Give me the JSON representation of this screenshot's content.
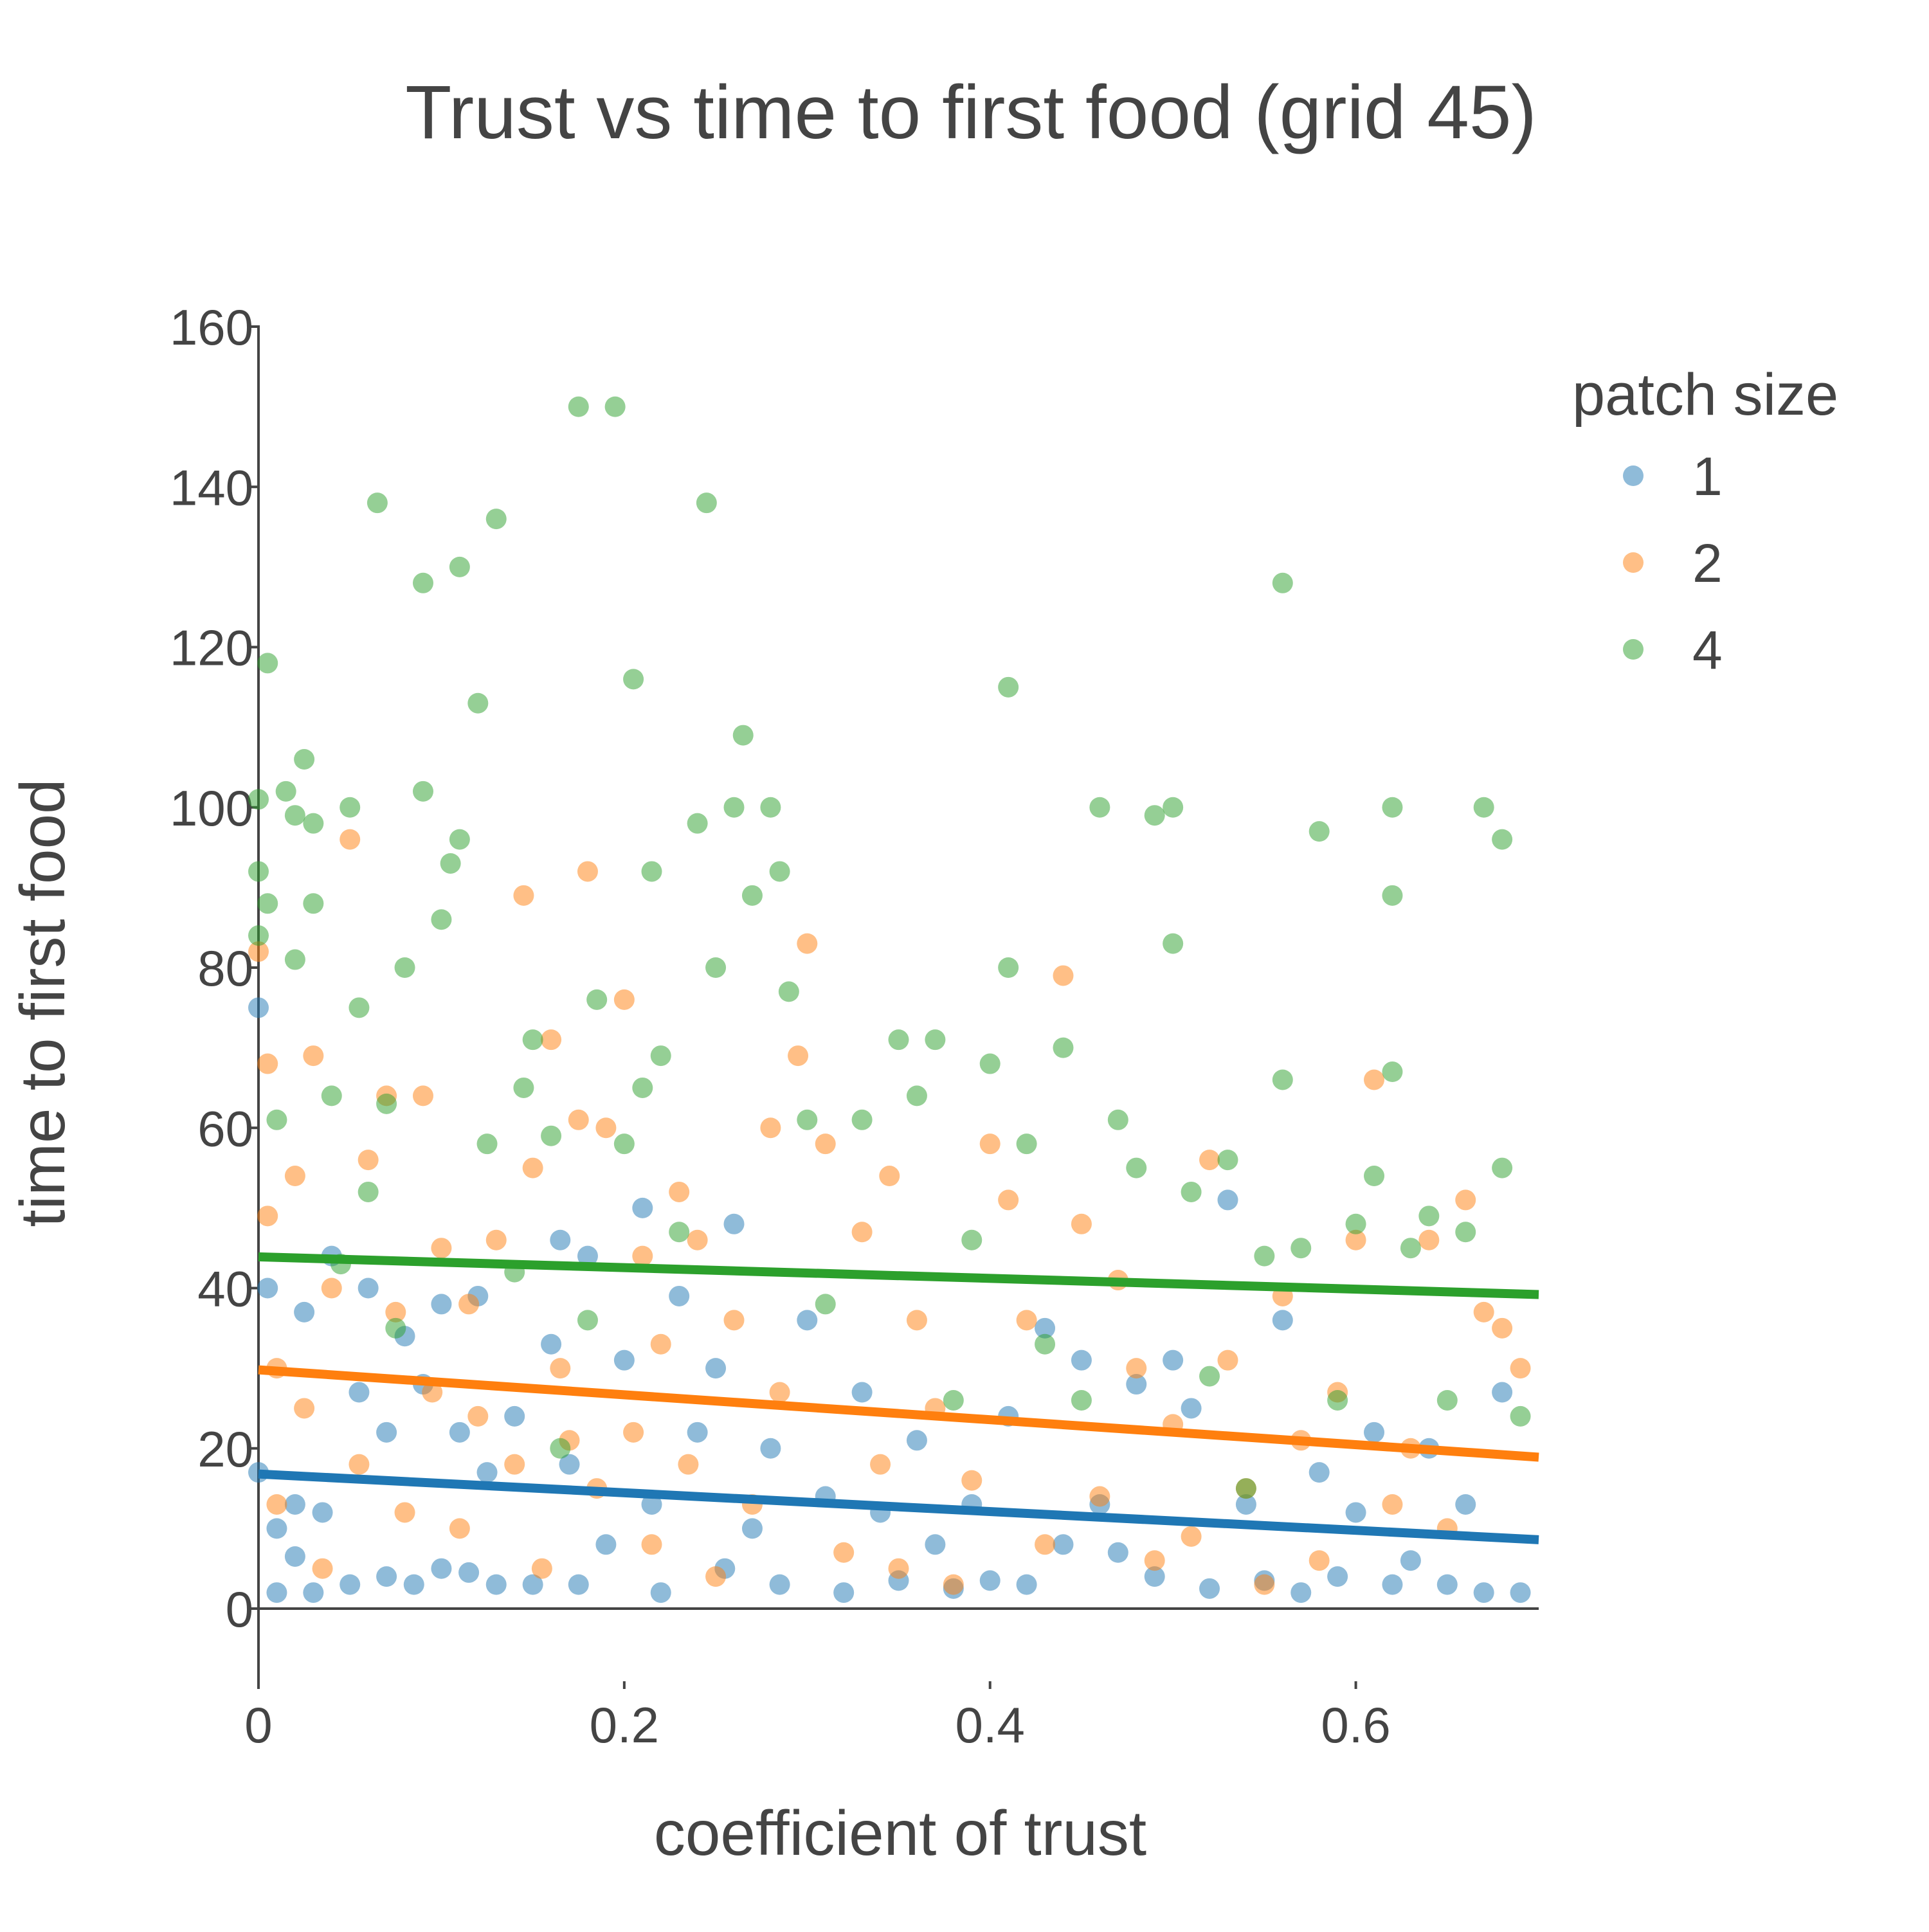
{
  "chart_data": {
    "type": "scatter",
    "title": "Trust vs time to first food (grid 45)",
    "xlabel": "coefficient of trust",
    "ylabel": "time to first food",
    "xlim": [
      0,
      0.7
    ],
    "ylim": [
      -8,
      160
    ],
    "xticks": [
      0,
      0.2,
      0.4,
      0.6
    ],
    "xtick_labels": [
      "0",
      "0.2",
      "0.4",
      "0.6"
    ],
    "yticks": [
      0,
      20,
      40,
      60,
      80,
      100,
      120,
      140,
      160
    ],
    "ytick_labels": [
      "0",
      "20",
      "40",
      "60",
      "80",
      "100",
      "120",
      "140",
      "160"
    ],
    "grid": false,
    "legend": {
      "title": "patch size",
      "placement": "top-right, outside plot"
    },
    "series": [
      {
        "name": "1",
        "color": "#1f77b4",
        "trend": {
          "x": [
            0,
            0.7
          ],
          "y": [
            16.8,
            8.6
          ]
        },
        "points": [
          [
            0.0,
            75
          ],
          [
            0.0,
            17
          ],
          [
            0.005,
            40
          ],
          [
            0.01,
            2
          ],
          [
            0.01,
            10
          ],
          [
            0.02,
            13
          ],
          [
            0.02,
            6.5
          ],
          [
            0.025,
            37
          ],
          [
            0.03,
            2
          ],
          [
            0.035,
            12
          ],
          [
            0.04,
            44
          ],
          [
            0.05,
            3
          ],
          [
            0.055,
            27
          ],
          [
            0.06,
            40
          ],
          [
            0.07,
            22
          ],
          [
            0.07,
            4
          ],
          [
            0.08,
            34
          ],
          [
            0.085,
            3
          ],
          [
            0.09,
            28
          ],
          [
            0.1,
            38
          ],
          [
            0.1,
            5
          ],
          [
            0.11,
            22
          ],
          [
            0.115,
            4.5
          ],
          [
            0.12,
            39
          ],
          [
            0.125,
            17
          ],
          [
            0.13,
            3
          ],
          [
            0.14,
            24
          ],
          [
            0.15,
            3
          ],
          [
            0.16,
            33
          ],
          [
            0.165,
            46
          ],
          [
            0.17,
            18
          ],
          [
            0.175,
            3
          ],
          [
            0.18,
            44
          ],
          [
            0.19,
            8
          ],
          [
            0.2,
            31
          ],
          [
            0.21,
            50
          ],
          [
            0.215,
            13
          ],
          [
            0.22,
            2
          ],
          [
            0.23,
            39
          ],
          [
            0.24,
            22
          ],
          [
            0.25,
            30
          ],
          [
            0.255,
            5
          ],
          [
            0.26,
            48
          ],
          [
            0.27,
            10
          ],
          [
            0.28,
            20
          ],
          [
            0.285,
            3
          ],
          [
            0.3,
            36
          ],
          [
            0.31,
            14
          ],
          [
            0.32,
            2
          ],
          [
            0.33,
            27
          ],
          [
            0.34,
            12
          ],
          [
            0.35,
            3.5
          ],
          [
            0.36,
            21
          ],
          [
            0.37,
            8
          ],
          [
            0.38,
            2.5
          ],
          [
            0.39,
            13
          ],
          [
            0.4,
            3.5
          ],
          [
            0.41,
            24
          ],
          [
            0.42,
            3
          ],
          [
            0.43,
            35
          ],
          [
            0.44,
            8
          ],
          [
            0.45,
            31
          ],
          [
            0.46,
            13
          ],
          [
            0.47,
            7
          ],
          [
            0.48,
            28
          ],
          [
            0.49,
            4
          ],
          [
            0.5,
            31
          ],
          [
            0.51,
            25
          ],
          [
            0.52,
            2.5
          ],
          [
            0.53,
            51
          ],
          [
            0.54,
            13
          ],
          [
            0.55,
            3.5
          ],
          [
            0.56,
            36
          ],
          [
            0.57,
            2
          ],
          [
            0.58,
            17
          ],
          [
            0.59,
            4
          ],
          [
            0.6,
            12
          ],
          [
            0.61,
            22
          ],
          [
            0.62,
            3
          ],
          [
            0.63,
            6
          ],
          [
            0.64,
            20
          ],
          [
            0.65,
            3
          ],
          [
            0.66,
            13
          ],
          [
            0.67,
            2
          ],
          [
            0.68,
            27
          ],
          [
            0.69,
            2
          ]
        ]
      },
      {
        "name": "2",
        "color": "#ff7f0e",
        "trend": {
          "x": [
            0,
            0.7
          ],
          "y": [
            29.8,
            18.9
          ]
        },
        "points": [
          [
            0.0,
            82
          ],
          [
            0.005,
            68
          ],
          [
            0.005,
            49
          ],
          [
            0.01,
            30
          ],
          [
            0.01,
            13
          ],
          [
            0.02,
            54
          ],
          [
            0.025,
            25
          ],
          [
            0.03,
            69
          ],
          [
            0.035,
            5
          ],
          [
            0.04,
            40
          ],
          [
            0.05,
            96
          ],
          [
            0.055,
            18
          ],
          [
            0.06,
            56
          ],
          [
            0.07,
            64
          ],
          [
            0.075,
            37
          ],
          [
            0.08,
            12
          ],
          [
            0.09,
            64
          ],
          [
            0.095,
            27
          ],
          [
            0.1,
            45
          ],
          [
            0.11,
            10
          ],
          [
            0.115,
            38
          ],
          [
            0.12,
            24
          ],
          [
            0.13,
            46
          ],
          [
            0.14,
            18
          ],
          [
            0.145,
            89
          ],
          [
            0.15,
            55
          ],
          [
            0.155,
            5
          ],
          [
            0.16,
            71
          ],
          [
            0.165,
            30
          ],
          [
            0.17,
            21
          ],
          [
            0.175,
            61
          ],
          [
            0.18,
            92
          ],
          [
            0.185,
            15
          ],
          [
            0.19,
            60
          ],
          [
            0.2,
            76
          ],
          [
            0.205,
            22
          ],
          [
            0.21,
            44
          ],
          [
            0.215,
            8
          ],
          [
            0.22,
            33
          ],
          [
            0.23,
            52
          ],
          [
            0.235,
            18
          ],
          [
            0.24,
            46
          ],
          [
            0.25,
            4
          ],
          [
            0.26,
            36
          ],
          [
            0.27,
            13
          ],
          [
            0.28,
            60
          ],
          [
            0.285,
            27
          ],
          [
            0.295,
            69
          ],
          [
            0.3,
            83
          ],
          [
            0.31,
            58
          ],
          [
            0.32,
            7
          ],
          [
            0.33,
            47
          ],
          [
            0.34,
            18
          ],
          [
            0.345,
            54
          ],
          [
            0.35,
            5
          ],
          [
            0.36,
            36
          ],
          [
            0.37,
            25
          ],
          [
            0.38,
            3
          ],
          [
            0.39,
            16
          ],
          [
            0.4,
            58
          ],
          [
            0.41,
            51
          ],
          [
            0.42,
            36
          ],
          [
            0.43,
            8
          ],
          [
            0.44,
            79
          ],
          [
            0.45,
            48
          ],
          [
            0.46,
            14
          ],
          [
            0.47,
            41
          ],
          [
            0.48,
            30
          ],
          [
            0.49,
            6
          ],
          [
            0.5,
            23
          ],
          [
            0.51,
            9
          ],
          [
            0.52,
            56
          ],
          [
            0.53,
            31
          ],
          [
            0.54,
            15
          ],
          [
            0.55,
            3
          ],
          [
            0.56,
            39
          ],
          [
            0.57,
            21
          ],
          [
            0.58,
            6
          ],
          [
            0.59,
            27
          ],
          [
            0.6,
            46
          ],
          [
            0.61,
            66
          ],
          [
            0.62,
            13
          ],
          [
            0.63,
            20
          ],
          [
            0.64,
            46
          ],
          [
            0.65,
            10
          ],
          [
            0.66,
            51
          ],
          [
            0.67,
            37
          ],
          [
            0.68,
            35
          ],
          [
            0.69,
            30
          ]
        ]
      },
      {
        "name": "4",
        "color": "#2ca02c",
        "trend": {
          "x": [
            0,
            0.7
          ],
          "y": [
            43.9,
            39.2
          ]
        },
        "points": [
          [
            0.0,
            92
          ],
          [
            0.0,
            101
          ],
          [
            0.0,
            84
          ],
          [
            0.005,
            118
          ],
          [
            0.005,
            88
          ],
          [
            0.01,
            61
          ],
          [
            0.015,
            102
          ],
          [
            0.02,
            99
          ],
          [
            0.02,
            81
          ],
          [
            0.025,
            106
          ],
          [
            0.03,
            98
          ],
          [
            0.03,
            88
          ],
          [
            0.04,
            64
          ],
          [
            0.045,
            43
          ],
          [
            0.05,
            100
          ],
          [
            0.055,
            75
          ],
          [
            0.06,
            52
          ],
          [
            0.065,
            138
          ],
          [
            0.07,
            63
          ],
          [
            0.075,
            35
          ],
          [
            0.08,
            80
          ],
          [
            0.09,
            128
          ],
          [
            0.09,
            102
          ],
          [
            0.1,
            86
          ],
          [
            0.105,
            93
          ],
          [
            0.11,
            130
          ],
          [
            0.11,
            96
          ],
          [
            0.12,
            113
          ],
          [
            0.125,
            58
          ],
          [
            0.13,
            136
          ],
          [
            0.14,
            42
          ],
          [
            0.145,
            65
          ],
          [
            0.15,
            71
          ],
          [
            0.16,
            59
          ],
          [
            0.165,
            20
          ],
          [
            0.175,
            150
          ],
          [
            0.18,
            36
          ],
          [
            0.185,
            76
          ],
          [
            0.195,
            150
          ],
          [
            0.2,
            58
          ],
          [
            0.205,
            116
          ],
          [
            0.21,
            65
          ],
          [
            0.215,
            92
          ],
          [
            0.22,
            69
          ],
          [
            0.23,
            47
          ],
          [
            0.24,
            98
          ],
          [
            0.245,
            138
          ],
          [
            0.25,
            80
          ],
          [
            0.26,
            100
          ],
          [
            0.265,
            109
          ],
          [
            0.27,
            89
          ],
          [
            0.28,
            100
          ],
          [
            0.285,
            92
          ],
          [
            0.29,
            77
          ],
          [
            0.3,
            61
          ],
          [
            0.31,
            38
          ],
          [
            0.33,
            61
          ],
          [
            0.35,
            71
          ],
          [
            0.36,
            64
          ],
          [
            0.37,
            71
          ],
          [
            0.38,
            26
          ],
          [
            0.39,
            46
          ],
          [
            0.4,
            68
          ],
          [
            0.41,
            115
          ],
          [
            0.41,
            80
          ],
          [
            0.42,
            58
          ],
          [
            0.43,
            33
          ],
          [
            0.44,
            70
          ],
          [
            0.45,
            26
          ],
          [
            0.46,
            100
          ],
          [
            0.47,
            61
          ],
          [
            0.48,
            55
          ],
          [
            0.49,
            99
          ],
          [
            0.5,
            100
          ],
          [
            0.5,
            83
          ],
          [
            0.51,
            52
          ],
          [
            0.52,
            29
          ],
          [
            0.53,
            56
          ],
          [
            0.54,
            15
          ],
          [
            0.55,
            44
          ],
          [
            0.56,
            128
          ],
          [
            0.56,
            66
          ],
          [
            0.57,
            45
          ],
          [
            0.58,
            97
          ],
          [
            0.59,
            26
          ],
          [
            0.6,
            48
          ],
          [
            0.61,
            54
          ],
          [
            0.62,
            100
          ],
          [
            0.62,
            89
          ],
          [
            0.62,
            67
          ],
          [
            0.63,
            45
          ],
          [
            0.64,
            49
          ],
          [
            0.65,
            26
          ],
          [
            0.66,
            47
          ],
          [
            0.67,
            100
          ],
          [
            0.68,
            96
          ],
          [
            0.68,
            55
          ],
          [
            0.69,
            24
          ]
        ]
      }
    ]
  }
}
